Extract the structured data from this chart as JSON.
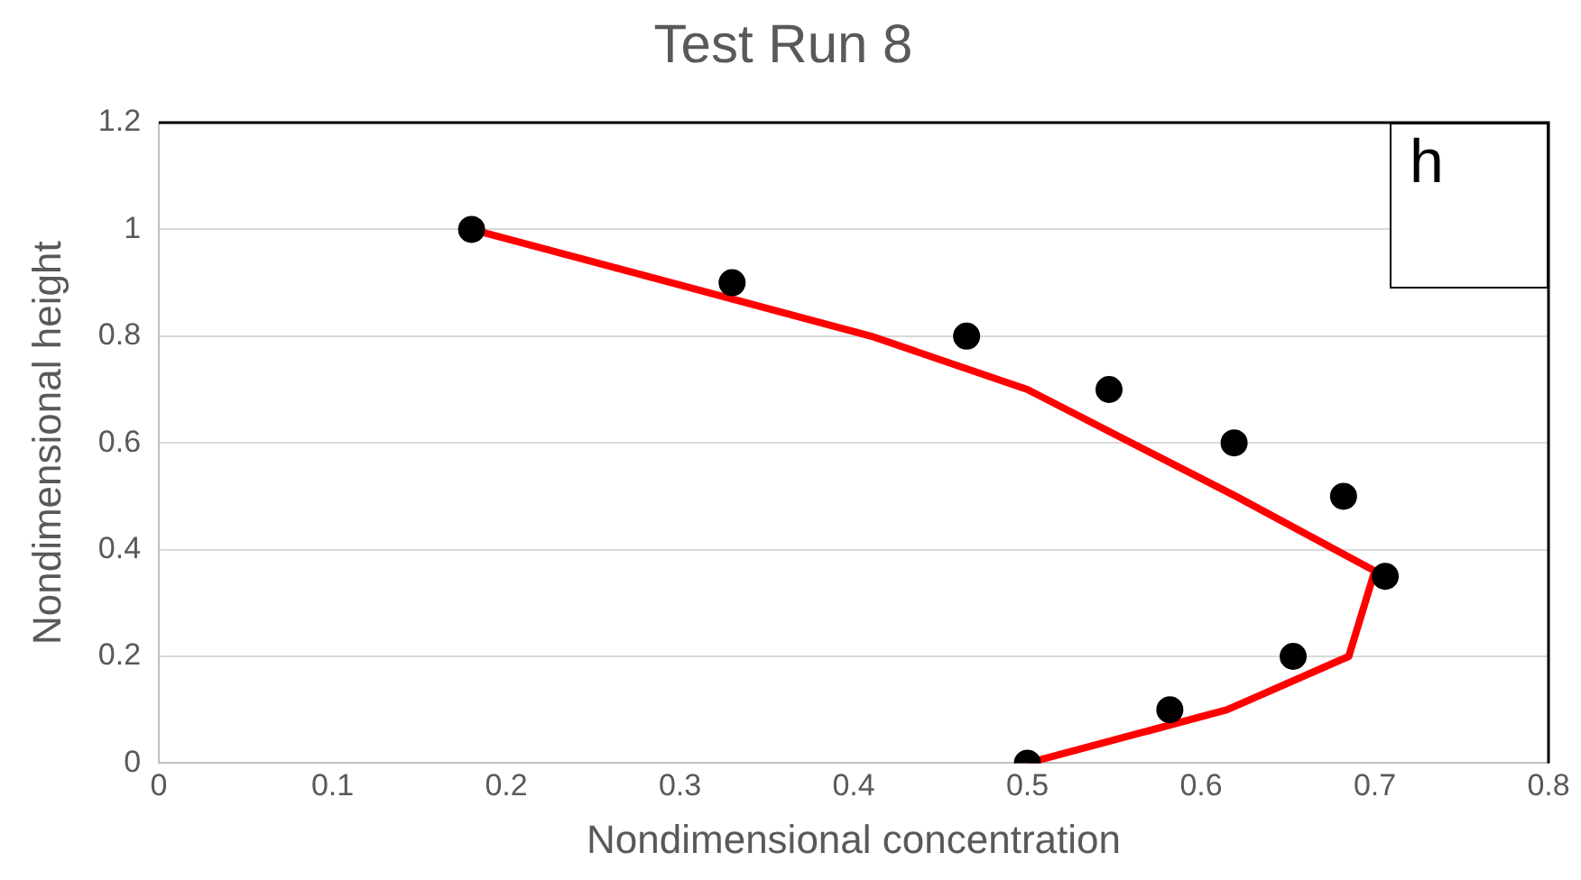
{
  "chart_data": {
    "type": "scatter",
    "title": "Test Run 8",
    "xlabel": "Nondimensional concentration",
    "ylabel": "Nondimensional height",
    "annotations": [
      "h"
    ],
    "xlim": [
      0,
      0.8
    ],
    "xticks": [
      0,
      0.1,
      0.2,
      0.3,
      0.4,
      0.5,
      0.6,
      0.7,
      0.8
    ],
    "ylim": [
      0,
      1.2
    ],
    "yticks": [
      0,
      0.2,
      0.4,
      0.6,
      0.8,
      1,
      1.2
    ],
    "grid": "y",
    "legend": false,
    "series": [
      {
        "type": "scatter",
        "color": "#000000",
        "marker": "circle",
        "x": [
          0.18,
          0.33,
          0.465,
          0.547,
          0.619,
          0.682,
          0.706,
          0.653,
          0.582,
          0.5
        ],
        "values": [
          1,
          0.9,
          0.8,
          0.7,
          0.6,
          0.5,
          0.35,
          0.2,
          0.1,
          0
        ]
      },
      {
        "type": "line",
        "color": "#ff0000",
        "marker": "none",
        "line_style": "solid",
        "x": [
          0.18,
          0.41,
          0.5,
          0.56,
          0.62,
          0.7,
          0.685,
          0.615,
          0.5
        ],
        "values": [
          1,
          0.8,
          0.7,
          0.6,
          0.5,
          0.36,
          0.2,
          0.1,
          0
        ]
      }
    ]
  }
}
